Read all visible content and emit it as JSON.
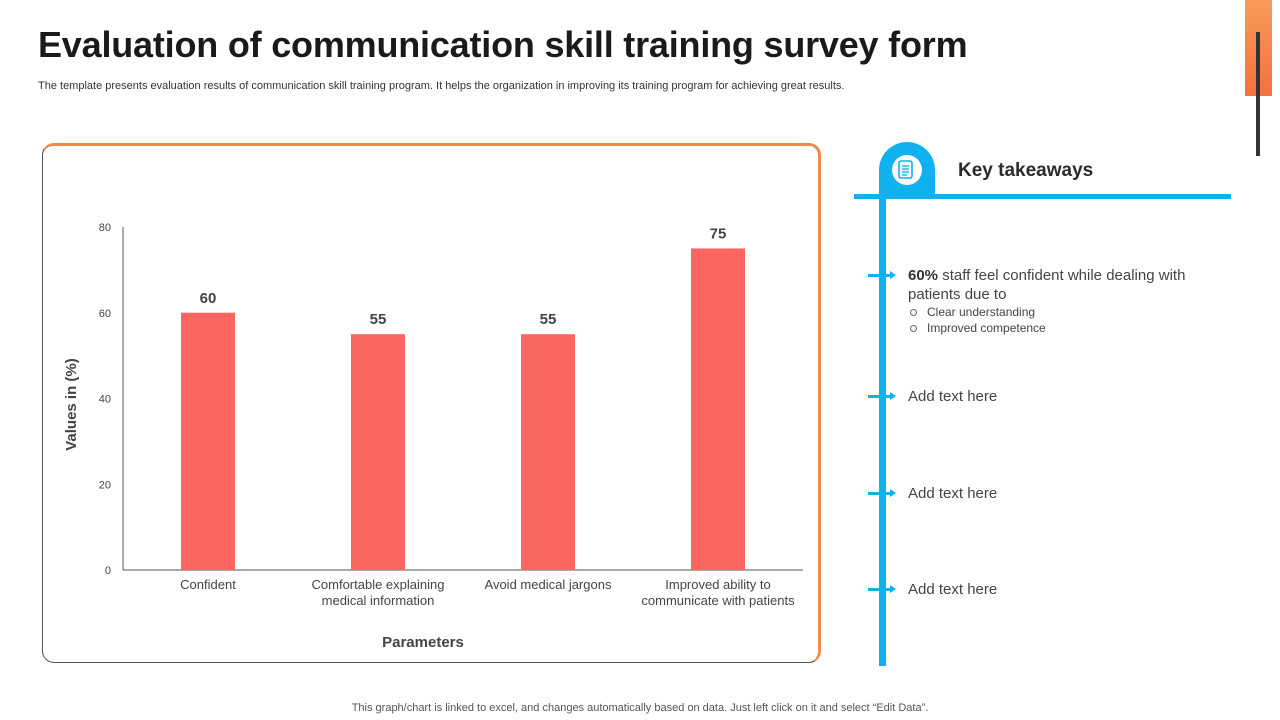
{
  "page": {
    "title": "Evaluation of communication skill training survey form",
    "subtitle": "The template presents evaluation results of communication skill training program. It helps the organization in improving its training program for achieving great results.",
    "footer_note": "This graph/chart is linked to excel, and changes automatically based on data. Just left click on it and select “Edit Data”."
  },
  "colors": {
    "accent_orange": "#ee8a50",
    "bar": "#fc6660",
    "timeline_blue": "#0fb2ee"
  },
  "chart_data": {
    "type": "bar",
    "categories": [
      [
        "Confident"
      ],
      [
        "Comfortable explaining",
        "medical information"
      ],
      [
        "Avoid medical jargons"
      ],
      [
        "Improved ability to",
        "communicate with patients"
      ]
    ],
    "values": [
      60,
      55,
      55,
      75
    ],
    "data_labels": [
      "60",
      "55",
      "55",
      "75"
    ],
    "title": "",
    "xlabel": "Parameters",
    "ylabel": "Values in (%)",
    "ylim": [
      0,
      80
    ],
    "yticks": [
      0,
      20,
      40,
      60,
      80
    ],
    "grid": false,
    "legend": "none"
  },
  "takeaways": {
    "icon": "document-icon",
    "heading": "Key takeaways",
    "items": [
      {
        "highlight": "60%",
        "text": " staff feel confident while dealing with patients due to",
        "subitems": [
          "Clear understanding",
          "Improved competence"
        ]
      },
      {
        "highlight": "",
        "text": "Add text here",
        "subitems": []
      },
      {
        "highlight": "",
        "text": "Add text here",
        "subitems": []
      },
      {
        "highlight": "",
        "text": "Add text here",
        "subitems": []
      }
    ]
  }
}
